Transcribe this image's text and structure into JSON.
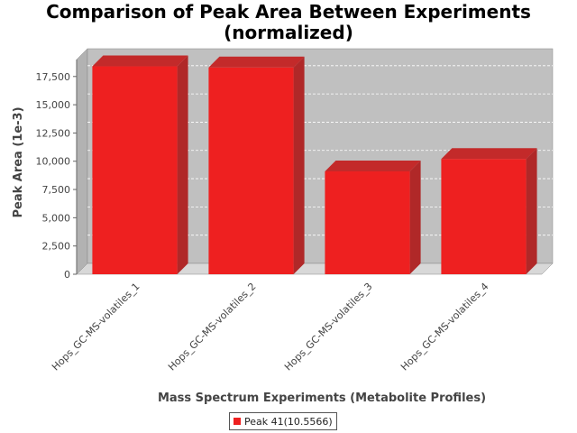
{
  "chart_data": {
    "type": "bar",
    "title_line1": "Comparison of Peak Area Between Experiments",
    "title_line2": "(normalized)",
    "xlabel": "Mass Spectrum Experiments (Metabolite Profiles)",
    "ylabel": "Peak Area (1e-3)",
    "categories": [
      "Hops_GC-MS-volatiles_1",
      "Hops_GC-MS-volatiles_2",
      "Hops_GC-MS-volatiles_3",
      "Hops_GC-MS-volatiles_4"
    ],
    "series": [
      {
        "name": "Peak 41(10.5566)",
        "values": [
          18400,
          18300,
          9100,
          10200
        ],
        "color": "#ee2020"
      }
    ],
    "ylim": [
      0,
      19000
    ],
    "yticks": [
      0,
      2500,
      5000,
      7500,
      10000,
      12500,
      15000,
      17500
    ],
    "ytick_labels": [
      "0",
      "2,500",
      "5,000",
      "7,500",
      "10,000",
      "12,500",
      "15,000",
      "17,500"
    ],
    "grid": true,
    "legend_position": "bottom",
    "plot_background": "#c0c0c0"
  }
}
